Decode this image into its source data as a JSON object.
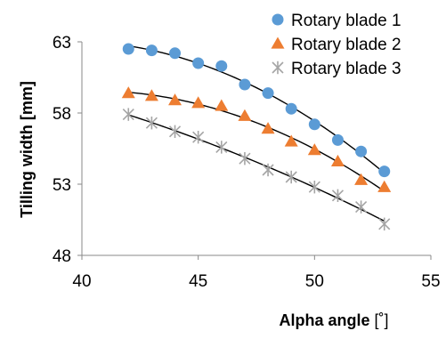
{
  "chart_data": {
    "type": "scatter",
    "title": "",
    "xlabel": "Alpha angle",
    "xlabel_unit": "[˚]",
    "ylabel": "Tilling width [mm]",
    "xlim": [
      40,
      55
    ],
    "ylim": [
      48,
      63
    ],
    "xticks": [
      "40",
      "45",
      "50",
      "55"
    ],
    "yticks": [
      "48",
      "53",
      "58",
      "63"
    ],
    "grid": false,
    "legend": "top-right",
    "trendlines": true,
    "series": [
      {
        "name": "Rotary blade 1",
        "marker": "circle",
        "color": "#5B9BD5",
        "x": [
          42,
          43,
          44,
          45,
          46,
          47,
          48,
          49,
          50,
          51,
          52,
          53
        ],
        "y": [
          62.5,
          62.4,
          62.2,
          61.5,
          61.3,
          60.0,
          59.4,
          58.3,
          57.2,
          56.1,
          55.3,
          53.9
        ]
      },
      {
        "name": "Rotary blade 2",
        "marker": "triangle",
        "color": "#ED7D31",
        "x": [
          42,
          43,
          44,
          45,
          46,
          47,
          48,
          49,
          50,
          51,
          52,
          53
        ],
        "y": [
          59.4,
          59.2,
          58.9,
          58.7,
          58.5,
          57.8,
          56.9,
          56.0,
          55.4,
          54.6,
          53.3,
          52.8
        ]
      },
      {
        "name": "Rotary blade 3",
        "marker": "asterisk",
        "color": "#A5A5A5",
        "x": [
          42,
          43,
          44,
          45,
          46,
          47,
          48,
          49,
          50,
          51,
          52,
          53
        ],
        "y": [
          57.9,
          57.3,
          56.7,
          56.3,
          55.6,
          54.8,
          54.0,
          53.5,
          52.8,
          52.2,
          51.4,
          50.2
        ]
      }
    ]
  }
}
